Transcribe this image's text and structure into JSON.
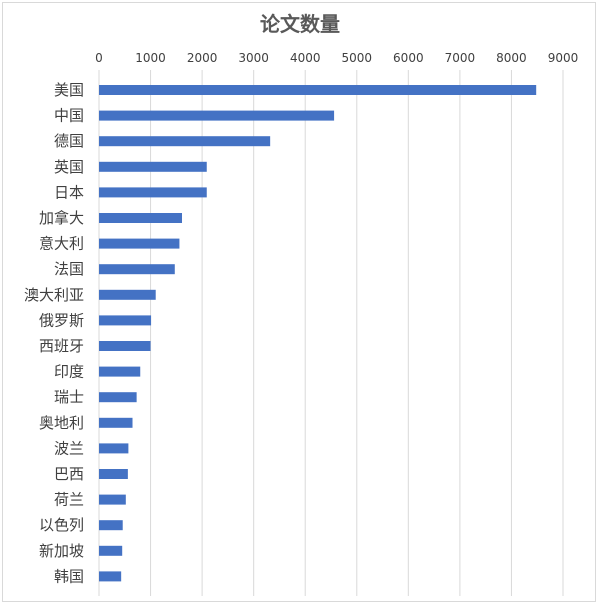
{
  "chart_data": {
    "type": "bar",
    "orientation": "horizontal",
    "title": "论文数量",
    "xlabel": "",
    "ylabel": "",
    "xlim": [
      0,
      9000
    ],
    "x_ticks": [
      "0",
      "1000",
      "2000",
      "3000",
      "4000",
      "5000",
      "6000",
      "7000",
      "8000",
      "9000"
    ],
    "x_axis_position": "top",
    "grid": "vertical",
    "bar_color": "#4472c4",
    "categories": [
      "美国",
      "中国",
      "德国",
      "英国",
      "日本",
      "加拿大",
      "意大利",
      "法国",
      "澳大利亚",
      "俄罗斯",
      "西班牙",
      "印度",
      "瑞士",
      "奥地利",
      "波兰",
      "巴西",
      "荷兰",
      "以色列",
      "新加坡",
      "韩国"
    ],
    "values": [
      8480,
      4560,
      3320,
      2090,
      2090,
      1610,
      1560,
      1470,
      1100,
      1010,
      1000,
      800,
      730,
      650,
      570,
      560,
      520,
      460,
      450,
      430
    ]
  }
}
